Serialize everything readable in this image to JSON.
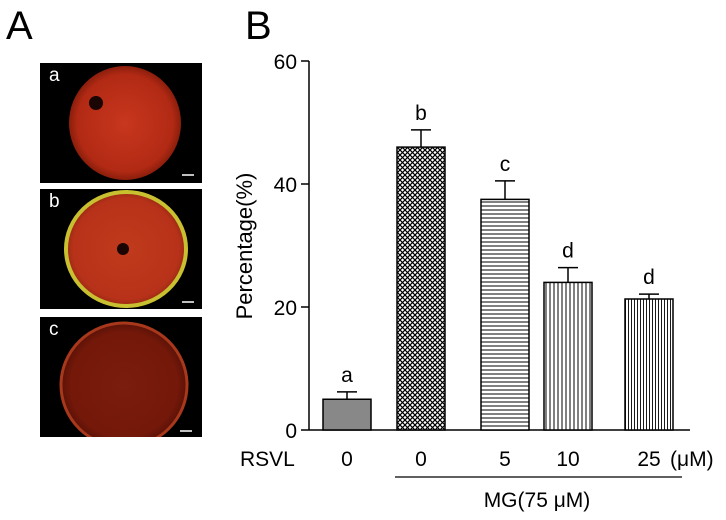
{
  "panels": {
    "left_label": "A",
    "right_label": "B",
    "images": [
      {
        "label": "a"
      },
      {
        "label": "b"
      },
      {
        "label": "c"
      }
    ]
  },
  "chart_data": {
    "type": "bar",
    "ylabel": "Percentage(%)",
    "ylim": [
      0,
      60
    ],
    "yticks": [
      0,
      20,
      40,
      60
    ],
    "row_label": "RSVL",
    "categories": [
      "0",
      "0",
      "5",
      "10",
      "25"
    ],
    "unit_label": "(μM)",
    "group_label": "MG(75 μM)",
    "values": [
      5.0,
      46.0,
      37.5,
      24.0,
      21.3
    ],
    "errors": [
      1.2,
      2.8,
      3.0,
      2.4,
      0.8
    ],
    "letters": [
      "a",
      "b",
      "c",
      "d",
      "d"
    ],
    "patterns": [
      "solid-gray",
      "crosshatch",
      "horizontal",
      "vertical",
      "vertical-dense"
    ],
    "colors": {
      "bar_fill": "#888888",
      "stroke": "#000000"
    }
  }
}
